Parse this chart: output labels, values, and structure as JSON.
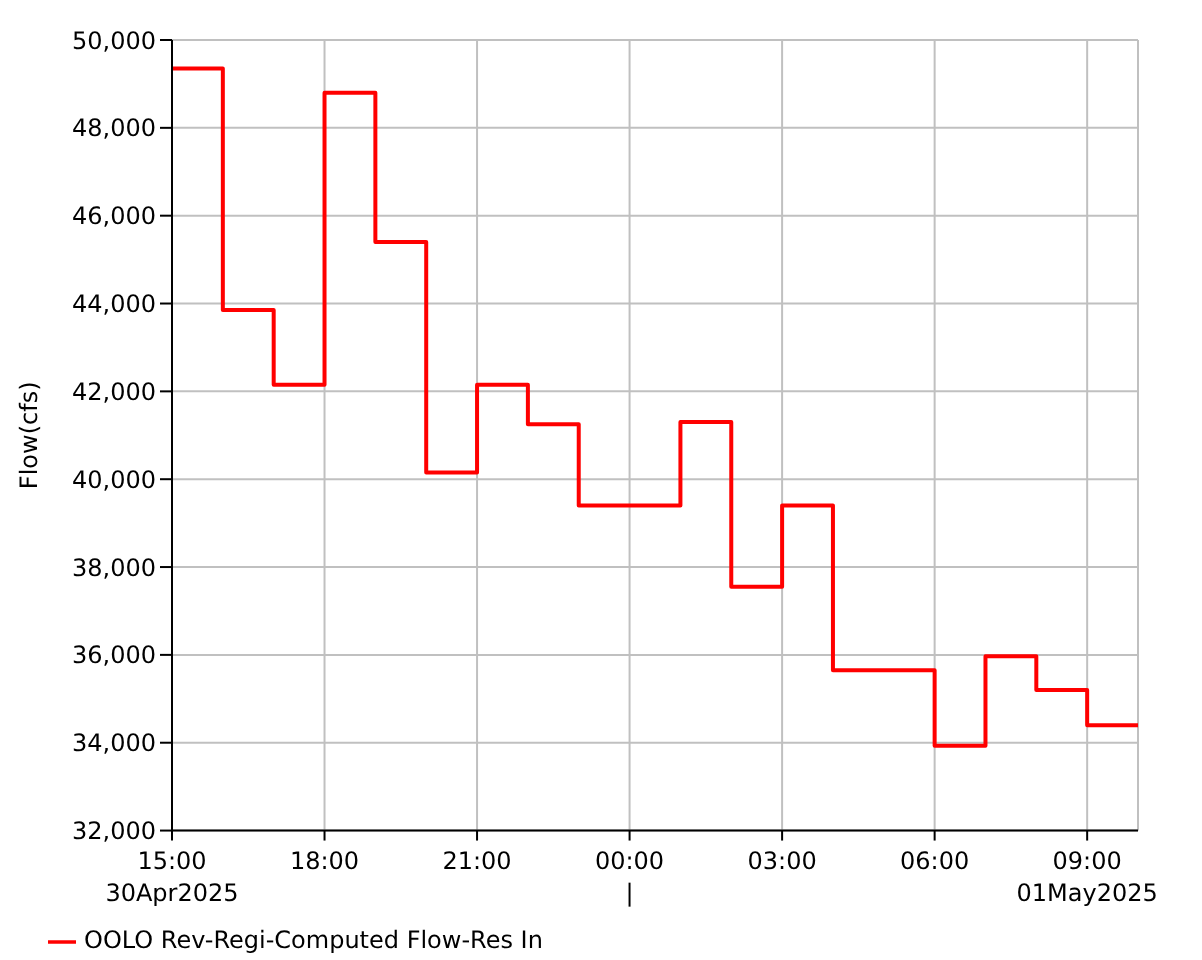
{
  "chart_data": {
    "type": "step",
    "ylabel": "Flow(cfs)",
    "x": [
      "2025-04-30T15:00",
      "2025-04-30T16:00",
      "2025-04-30T17:00",
      "2025-04-30T18:00",
      "2025-04-30T19:00",
      "2025-04-30T20:00",
      "2025-04-30T21:00",
      "2025-04-30T22:00",
      "2025-04-30T23:00",
      "2025-05-01T00:00",
      "2025-05-01T01:00",
      "2025-05-01T02:00",
      "2025-05-01T03:00",
      "2025-05-01T04:00",
      "2025-05-01T05:00",
      "2025-05-01T06:00",
      "2025-05-01T07:00",
      "2025-05-01T08:00",
      "2025-05-01T09:00",
      "2025-05-01T10:00"
    ],
    "series": [
      {
        "name": "OOLO Rev-Regi-Computed Flow-Res In",
        "color": "#ff0000",
        "values": [
          49350,
          43850,
          42150,
          48800,
          45400,
          40150,
          42150,
          41250,
          39400,
          39400,
          41300,
          37550,
          39400,
          35650,
          35650,
          33930,
          35970,
          35200,
          34400,
          34400
        ]
      }
    ],
    "xlim": [
      "2025-04-30T15:00",
      "2025-05-01T10:00"
    ],
    "xticks": [
      {
        "value": "2025-04-30T15:00",
        "label": "15:00\n30Apr2025"
      },
      {
        "value": "2025-04-30T18:00",
        "label": "18:00"
      },
      {
        "value": "2025-04-30T21:00",
        "label": "21:00"
      },
      {
        "value": "2025-05-01T00:00",
        "label": "00:00\n|"
      },
      {
        "value": "2025-05-01T03:00",
        "label": "03:00"
      },
      {
        "value": "2025-05-01T06:00",
        "label": "06:00"
      },
      {
        "value": "2025-05-01T09:00",
        "label": "09:00\n01May2025"
      }
    ],
    "ylim": [
      32000,
      50000
    ],
    "yticks": [
      {
        "value": 32000,
        "label": "32,000"
      },
      {
        "value": 34000,
        "label": "34,000"
      },
      {
        "value": 36000,
        "label": "36,000"
      },
      {
        "value": 38000,
        "label": "38,000"
      },
      {
        "value": 40000,
        "label": "40,000"
      },
      {
        "value": 42000,
        "label": "42,000"
      },
      {
        "value": 44000,
        "label": "44,000"
      },
      {
        "value": 46000,
        "label": "46,000"
      },
      {
        "value": 48000,
        "label": "48,000"
      },
      {
        "value": 50000,
        "label": "50,000"
      }
    ],
    "grid": true,
    "legend": "bottom left",
    "marker": "none",
    "line_style": "solid"
  }
}
